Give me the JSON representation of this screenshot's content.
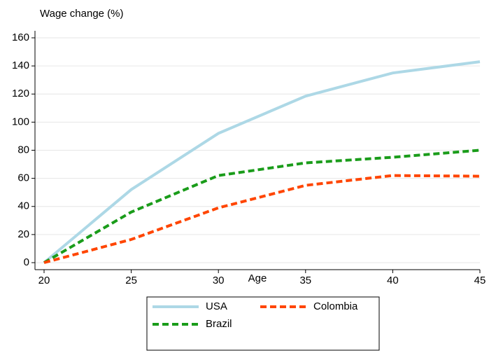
{
  "chart_data": {
    "type": "line",
    "title": "Wage change (%)",
    "x_label": "Age",
    "x": [
      20,
      25,
      30,
      35,
      40,
      45
    ],
    "series": [
      {
        "name": "USA",
        "color": "#add8e6",
        "dash": "solid",
        "values": [
          0,
          52,
          92,
          118.5,
          135,
          143
        ]
      },
      {
        "name": "Brazil",
        "color": "#1a9c1a",
        "dash": "dashed",
        "values": [
          0,
          36,
          62,
          71,
          75,
          80
        ]
      },
      {
        "name": "Colombia",
        "color": "#ff4500",
        "dash": "dashed",
        "values": [
          0,
          16.5,
          39,
          55,
          62,
          61.5
        ]
      }
    ],
    "xlim": [
      20,
      45
    ],
    "xticks": [
      20,
      25,
      30,
      35,
      40,
      45
    ],
    "ylim": [
      0,
      160
    ],
    "yticks": [
      0,
      20,
      40,
      60,
      80,
      100,
      120,
      140,
      160
    ],
    "grid": true,
    "legend": "bottom"
  }
}
